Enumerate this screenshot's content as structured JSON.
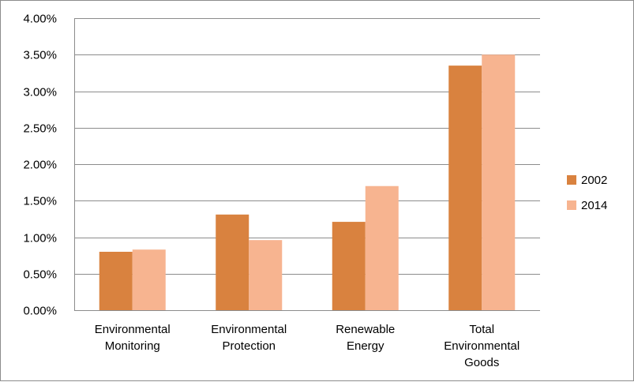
{
  "chart_data": {
    "type": "bar",
    "categories": [
      [
        "Environmental",
        "Monitoring"
      ],
      [
        "Environmental",
        "Protection"
      ],
      [
        "Renewable",
        "Energy"
      ],
      [
        "Total",
        "Environmental",
        "Goods"
      ]
    ],
    "series": [
      {
        "name": "2002",
        "color": "#d9823f",
        "values": [
          0.8,
          1.31,
          1.21,
          3.35
        ]
      },
      {
        "name": "2014",
        "color": "#f7b490",
        "values": [
          0.83,
          0.96,
          1.7,
          3.5
        ]
      }
    ],
    "y_ticks": [
      "0.00%",
      "0.50%",
      "1.00%",
      "1.50%",
      "2.00%",
      "2.50%",
      "3.00%",
      "3.50%",
      "4.00%"
    ],
    "ylim": [
      0,
      4
    ],
    "y_tick_step": 0.5,
    "y_unit": "%",
    "gridlines": true,
    "gridline_color": "#8c8c8c",
    "legend_position": "right"
  }
}
